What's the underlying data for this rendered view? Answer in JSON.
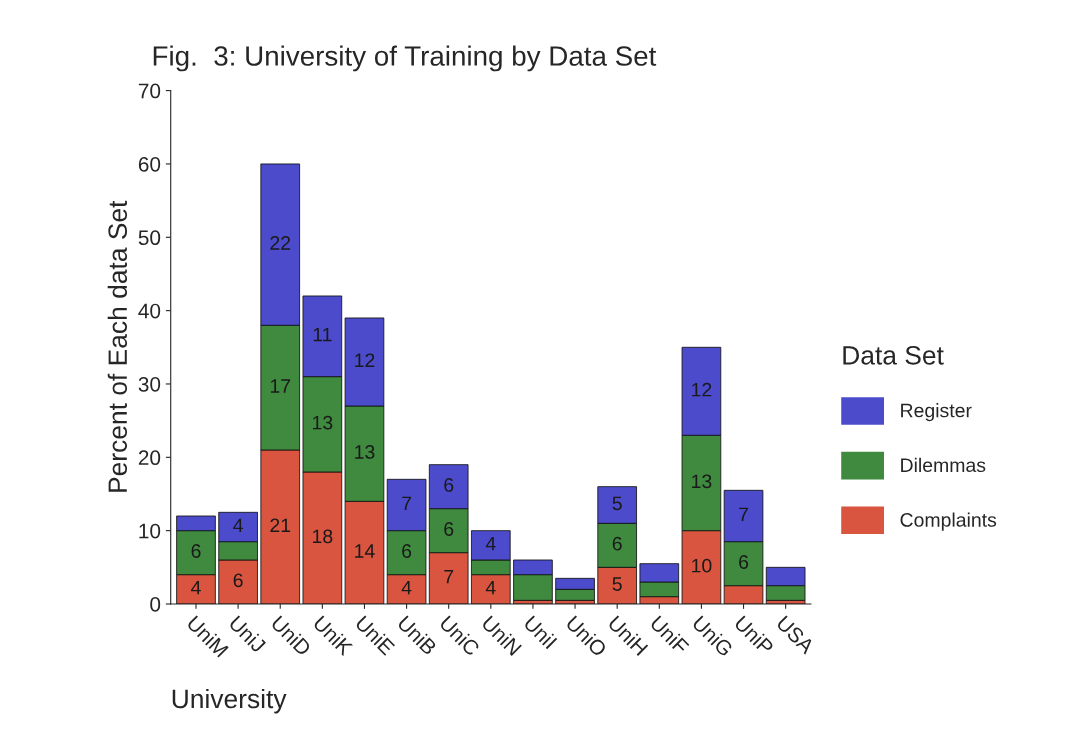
{
  "chart_data": {
    "type": "bar",
    "title": "Fig.  3: University of Training by Data Set",
    "xlabel": "University",
    "ylabel": "Percent of Each data Set",
    "legend_title": "Data Set",
    "legend": "right",
    "stacked": true,
    "grid": false,
    "categories": [
      "UniM",
      "UniJ",
      "UniD",
      "UniK",
      "UniE",
      "UniB",
      "UniC",
      "UniN",
      "UniI",
      "UniO",
      "UniH",
      "UniF",
      "UniG",
      "UniP",
      "USA"
    ],
    "ylim": [
      0,
      70
    ],
    "yticks": [
      0,
      10,
      20,
      30,
      40,
      50,
      60,
      70
    ],
    "series": [
      {
        "name": "Complaints",
        "color": "#d9553f",
        "values": [
          4,
          6,
          21,
          18,
          14,
          4,
          7,
          4,
          0.5,
          0.5,
          5,
          1,
          10,
          2.5,
          0.5
        ],
        "value_labels": [
          "4",
          "6",
          "21",
          "18",
          "14",
          "4",
          "7",
          "4",
          null,
          null,
          "5",
          null,
          "10",
          null,
          null
        ]
      },
      {
        "name": "Dilemmas",
        "color": "#3f8a3f",
        "values": [
          6,
          2.5,
          17,
          13,
          13,
          6,
          6,
          2,
          3.5,
          1.5,
          6,
          2,
          13,
          6,
          2
        ],
        "value_labels": [
          "6",
          null,
          "17",
          "13",
          "13",
          "6",
          "6",
          null,
          null,
          null,
          "6",
          null,
          "13",
          "6",
          null
        ]
      },
      {
        "name": "Register",
        "color": "#4b4bcc",
        "values": [
          2,
          4,
          22,
          11,
          12,
          7,
          6,
          4,
          2,
          1.5,
          5,
          2.5,
          12,
          7,
          2.5
        ],
        "value_labels": [
          null,
          "4",
          "22",
          "11",
          "12",
          "7",
          "6",
          "4",
          null,
          null,
          "5",
          null,
          "12",
          "7",
          null
        ]
      }
    ]
  }
}
